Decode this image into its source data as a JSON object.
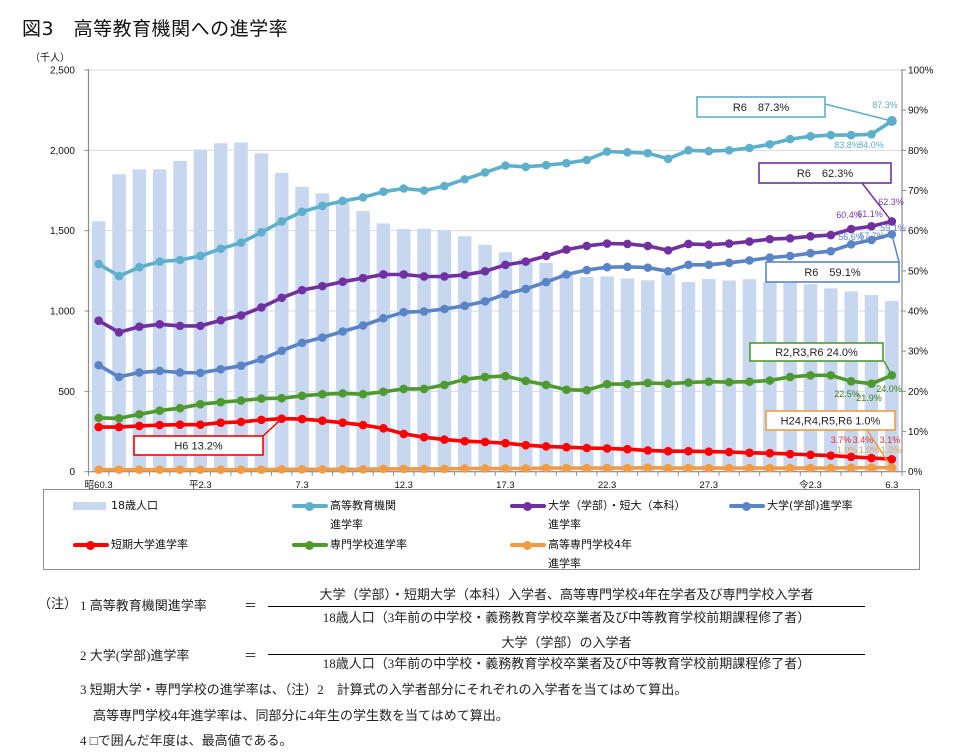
{
  "title": "図3　高等教育機関への進学率",
  "chart_data": {
    "type": "line",
    "title": "図3　高等教育機関への進学率",
    "xlabel": "",
    "ylabel_left": "（千人）",
    "ylabel_right": "",
    "ylim_left": [
      0,
      2500
    ],
    "ylim_right": [
      0,
      100
    ],
    "y_left_tick_values": [
      0,
      500,
      1000,
      1500,
      2000,
      2500
    ],
    "y_left_ticks": [
      "0",
      "500",
      "1,000",
      "1,500",
      "2,000",
      "2,500"
    ],
    "y_right_tick_values": [
      0,
      10,
      20,
      30,
      40,
      50,
      60,
      70,
      80,
      90,
      100
    ],
    "y_right_ticks": [
      "0%",
      "10%",
      "20%",
      "30%",
      "40%",
      "50%",
      "60%",
      "70%",
      "80%",
      "90%",
      "100%"
    ],
    "grid": true,
    "legend_placement": "bottom",
    "categories": [
      "昭60.3",
      "昭61.3",
      "昭62.3",
      "昭63.3",
      "平元.3",
      "平2.3",
      "平3.3",
      "平4.3",
      "平5.3",
      "平6.3",
      "平7.3",
      "平8.3",
      "平9.3",
      "平10.3",
      "平11.3",
      "平12.3",
      "平13.3",
      "平14.3",
      "平15.3",
      "平16.3",
      "平17.3",
      "平18.3",
      "平19.3",
      "平20.3",
      "平21.3",
      "平22.3",
      "平23.3",
      "平24.3",
      "平25.3",
      "平26.3",
      "平27.3",
      "平28.3",
      "平29.3",
      "平30.3",
      "平31.3",
      "令2.3",
      "令3.3",
      "令4.3",
      "令5.3",
      "令6.3"
    ],
    "x_tick_labels": [
      {
        "index": 0,
        "label": "昭60.3"
      },
      {
        "index": 5,
        "label": "平2.3"
      },
      {
        "index": 10,
        "label": "7.3"
      },
      {
        "index": 15,
        "label": "12.3"
      },
      {
        "index": 20,
        "label": "17.3"
      },
      {
        "index": 25,
        "label": "22.3"
      },
      {
        "index": 30,
        "label": "27.3"
      },
      {
        "index": 35,
        "label": "令2.3"
      },
      {
        "index": 39,
        "label": "6.3"
      }
    ],
    "series": [
      {
        "key": "population-18",
        "name": "18歳人口",
        "kind": "bar",
        "axis": "left",
        "unit": "千人",
        "color": "#C6D7EF",
        "values": [
          1559,
          1851,
          1882,
          1882,
          1934,
          2005,
          2044,
          2049,
          1981,
          1860,
          1773,
          1732,
          1681,
          1622,
          1545,
          1510,
          1512,
          1503,
          1465,
          1412,
          1366,
          1326,
          1300,
          1237,
          1212,
          1215,
          1202,
          1191,
          1231,
          1180,
          1199,
          1190,
          1198,
          1180,
          1175,
          1167,
          1141,
          1122,
          1100,
          1063
        ]
      },
      {
        "key": "higher-education-rate",
        "name": "高等教育機関進学率",
        "kind": "line",
        "axis": "right",
        "unit": "%",
        "color": "#5DAFCB",
        "label_color": "#5DAFCB",
        "values": [
          51.7,
          48.7,
          50.9,
          52.3,
          52.7,
          53.7,
          55.5,
          57.0,
          59.6,
          62.3,
          64.7,
          66.2,
          67.4,
          68.3,
          69.7,
          70.5,
          70.0,
          71.1,
          72.8,
          74.5,
          76.2,
          75.9,
          76.3,
          76.8,
          77.6,
          79.7,
          79.5,
          79.3,
          77.9,
          80.0,
          79.8,
          80.0,
          80.6,
          81.5,
          82.8,
          83.5,
          83.8,
          83.8,
          84.0,
          87.3
        ]
      },
      {
        "key": "university-junior-college-rate",
        "name": "大学（学部）・短大（本科）進学率",
        "kind": "line",
        "axis": "right",
        "unit": "%",
        "color": "#7030A0",
        "label_color": "#7A3AAA",
        "values": [
          37.6,
          34.7,
          36.1,
          36.7,
          36.3,
          36.3,
          37.7,
          38.9,
          40.9,
          43.3,
          45.2,
          46.2,
          47.3,
          48.2,
          49.1,
          49.1,
          48.6,
          48.6,
          49.0,
          49.9,
          51.5,
          52.3,
          53.7,
          55.3,
          56.2,
          56.8,
          56.7,
          56.2,
          55.1,
          56.7,
          56.5,
          56.8,
          57.3,
          57.9,
          58.1,
          58.6,
          58.9,
          60.4,
          61.1,
          62.3
        ]
      },
      {
        "key": "university-rate",
        "name": "大学(学部)進学率",
        "kind": "line",
        "axis": "right",
        "unit": "%",
        "color": "#5A84C6",
        "label_color": "#5A84C6",
        "values": [
          26.5,
          23.6,
          24.7,
          25.1,
          24.7,
          24.6,
          25.5,
          26.4,
          28.0,
          30.1,
          32.1,
          33.4,
          34.9,
          36.4,
          38.2,
          39.7,
          39.9,
          40.5,
          41.3,
          42.4,
          44.2,
          45.5,
          47.2,
          49.1,
          50.2,
          50.9,
          51.0,
          50.8,
          49.9,
          51.5,
          51.5,
          52.0,
          52.6,
          53.3,
          53.7,
          54.4,
          54.9,
          56.6,
          57.7,
          59.1
        ]
      },
      {
        "key": "junior-college-rate",
        "name": "短期大学進学率",
        "kind": "line",
        "axis": "right",
        "unit": "%",
        "color": "#FF0000",
        "label_color": "#E2302C",
        "values": [
          11.1,
          11.1,
          11.4,
          11.6,
          11.7,
          11.7,
          12.2,
          12.4,
          12.9,
          13.2,
          13.1,
          12.7,
          12.2,
          11.6,
          10.8,
          9.4,
          8.6,
          8.0,
          7.6,
          7.4,
          7.1,
          6.6,
          6.3,
          6.1,
          5.9,
          5.8,
          5.6,
          5.3,
          5.1,
          5.1,
          5.0,
          4.9,
          4.7,
          4.6,
          4.4,
          4.2,
          4.0,
          3.7,
          3.4,
          3.1
        ]
      },
      {
        "key": "vocational-school-rate",
        "name": "専門学校進学率",
        "kind": "line",
        "axis": "right",
        "unit": "%",
        "color": "#4E9A2E",
        "label_color": "#3A7D1E",
        "values": [
          13.4,
          13.3,
          14.3,
          15.2,
          15.8,
          16.8,
          17.3,
          17.7,
          18.2,
          18.3,
          18.9,
          19.3,
          19.5,
          19.3,
          19.9,
          20.6,
          20.6,
          21.6,
          23.0,
          23.6,
          23.8,
          22.6,
          21.6,
          20.4,
          20.3,
          21.8,
          21.8,
          22.1,
          21.9,
          22.2,
          22.4,
          22.3,
          22.4,
          22.7,
          23.6,
          24.0,
          24.0,
          22.5,
          21.9,
          24.0
        ]
      },
      {
        "key": "technical-college-4th-year-rate",
        "name": "高等専門学校4年進学率",
        "kind": "line",
        "axis": "right",
        "unit": "%",
        "color": "#F29B42",
        "label_color": "#F0A04A",
        "values": [
          0.5,
          0.5,
          0.5,
          0.5,
          0.5,
          0.5,
          0.5,
          0.5,
          0.5,
          0.6,
          0.6,
          0.6,
          0.6,
          0.6,
          0.7,
          0.7,
          0.7,
          0.7,
          0.8,
          0.8,
          0.8,
          0.8,
          0.9,
          0.9,
          0.9,
          0.9,
          0.9,
          1.0,
          0.9,
          0.9,
          0.9,
          0.9,
          0.9,
          0.9,
          0.9,
          0.9,
          0.9,
          1.0,
          1.0,
          1.0
        ]
      }
    ],
    "data_labels": [
      {
        "series": 1,
        "index": 37,
        "text": "83.8%"
      },
      {
        "series": 1,
        "index": 38,
        "text": "84.0%"
      },
      {
        "series": 1,
        "index": 39,
        "text": "87.3%"
      },
      {
        "series": 2,
        "index": 37,
        "text": "60.4%"
      },
      {
        "series": 2,
        "index": 38,
        "text": "61.1%"
      },
      {
        "series": 2,
        "index": 39,
        "text": "62.3%"
      },
      {
        "series": 3,
        "index": 37,
        "text": "56.6%"
      },
      {
        "series": 3,
        "index": 38,
        "text": "57.7%"
      },
      {
        "series": 3,
        "index": 39,
        "text": "59.1%"
      },
      {
        "series": 5,
        "index": 37,
        "text": "22.5%"
      },
      {
        "series": 5,
        "index": 38,
        "text": "21.9%"
      },
      {
        "series": 5,
        "index": 39,
        "text": "24.0%"
      },
      {
        "series": 4,
        "index": 37,
        "text": "3.7%"
      },
      {
        "series": 4,
        "index": 38,
        "text": "3.4%"
      },
      {
        "series": 4,
        "index": 39,
        "text": "3.1%"
      },
      {
        "series": 6,
        "index": 37,
        "text": "1.0%"
      },
      {
        "series": 6,
        "index": 38,
        "text": "1.0%"
      },
      {
        "series": 6,
        "index": 39,
        "text": "1.0%"
      }
    ],
    "callouts": [
      {
        "series": 1,
        "index": 39,
        "text": "R6　87.3%"
      },
      {
        "series": 2,
        "index": 39,
        "text": "R6　62.3%"
      },
      {
        "series": 3,
        "index": 39,
        "text": "R6　59.1%"
      },
      {
        "series": 5,
        "index": 39,
        "text": "R2,R3,R6 24.0%"
      },
      {
        "series": 6,
        "index": 39,
        "text": "H24,R4,R5,R6 1.0%"
      },
      {
        "series": 4,
        "index": 9,
        "text": "H6 13.2%"
      }
    ],
    "axis_color": "#8C8C8C",
    "grid_color": "#D9D9D9"
  },
  "legend": {
    "items": [
      {
        "series": 0,
        "label_lines": [
          "18歳人口"
        ]
      },
      {
        "series": 1,
        "label_lines": [
          "高等教育機関",
          "進学率"
        ]
      },
      {
        "series": 2,
        "label_lines": [
          "大学（学部）・短大（本科）",
          "進学率"
        ]
      },
      {
        "series": 3,
        "label_lines": [
          "大学(学部)進学率"
        ]
      },
      {
        "series": 4,
        "label_lines": [
          "短期大学進学率"
        ]
      },
      {
        "series": 5,
        "label_lines": [
          "専門学校進学率"
        ]
      },
      {
        "series": 6,
        "label_lines": [
          "高等専門学校4年",
          "進学率"
        ]
      }
    ]
  },
  "notes": {
    "label": "（注）",
    "formulas": [
      {
        "term": "1 高等教育機関進学率",
        "equals": "＝",
        "numerator": "大学（学部）・短期大学（本科）入学者、高等専門学校4年在学者及び専門学校入学者",
        "denominator": "18歳人口（3年前の中学校・義務教育学校卒業者及び中等教育学校前期課程修了者）"
      },
      {
        "term": "2 大学(学部)進学率",
        "equals": "＝",
        "numerator": "大学（学部）の入学者",
        "denominator": "18歳人口（3年前の中学校・義務教育学校卒業者及び中等教育学校前期課程修了者）"
      }
    ],
    "note3_line1": "3 短期大学・専門学校の進学率は、（注）2　計算式の入学者部分にそれぞれの入学者を当てはめて算出。",
    "note3_line2": "高等専門学校4年進学率は、同部分に4年生の学生数を当てはめて算出。",
    "note4": "4 □で囲んだ年度は、最高値である。"
  }
}
